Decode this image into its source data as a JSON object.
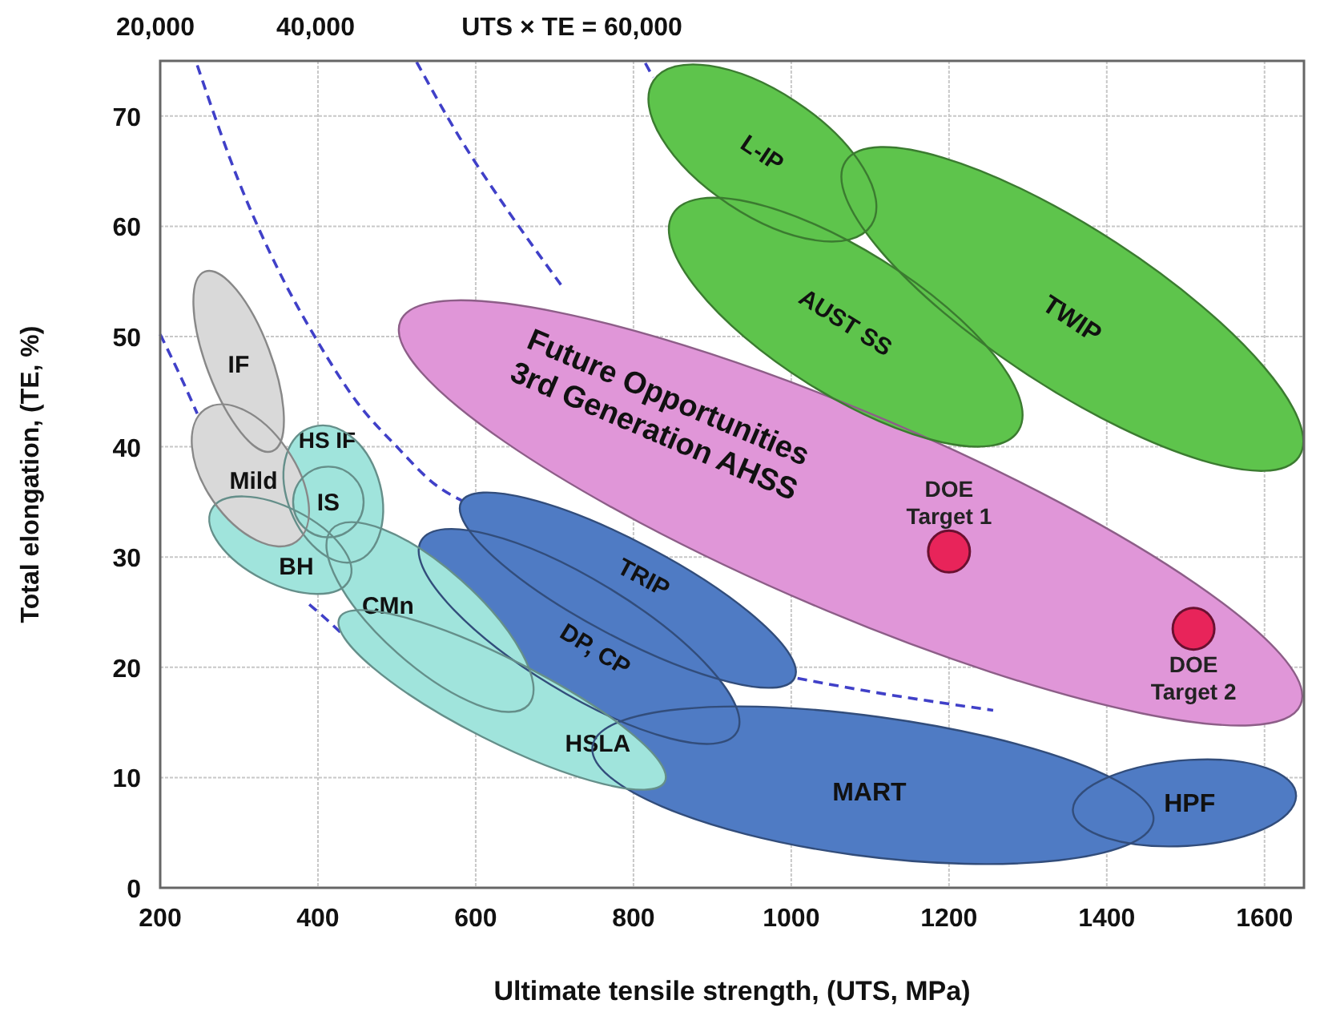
{
  "chart_data": {
    "type": "scatter",
    "xlabel": "Ultimate tensile strength, (UTS, MPa)",
    "ylabel": "Total elongation, (TE, %)",
    "xlim": [
      200,
      1650
    ],
    "ylim": [
      0,
      75
    ],
    "xticks": [
      200,
      400,
      600,
      800,
      1000,
      1200,
      1400,
      1600
    ],
    "yticks": [
      0,
      10,
      20,
      30,
      40,
      50,
      60,
      70
    ],
    "grid": true,
    "annotations": [
      "20,000",
      "40,000",
      "UTS × TE = 60,000"
    ],
    "series": [
      {
        "type": "line",
        "color": "#4040c8",
        "line_style": "dashed",
        "marker": "none",
        "x": [
          200,
          225,
          247,
          300,
          389,
          410,
          434
        ],
        "values": [
          50.2,
          46.5,
          43,
          null,
          25.7,
          24.4,
          22.8
        ]
      },
      {
        "type": "line",
        "color": "#4040c8",
        "line_style": "dashed",
        "marker": "none",
        "x": [
          247,
          300,
          350,
          400,
          450,
          500,
          550,
          586,
          800,
          1008,
          1100,
          1256
        ],
        "values": [
          74.6,
          64,
          56,
          49.5,
          44,
          40,
          36.5,
          35,
          null,
          19,
          17.8,
          16.1
        ]
      },
      {
        "type": "line",
        "color": "#4040c8",
        "line_style": "dashed",
        "marker": "none",
        "x": [
          525,
          580,
          640,
          708
        ],
        "values": [
          74.9,
          68,
          61.5,
          54.7
        ]
      },
      {
        "type": "line",
        "color": "#4040c8",
        "line_style": "dashed",
        "marker": "none",
        "x": [
          815,
          825
        ],
        "values": [
          74.8,
          73.5
        ]
      },
      {
        "type": "area",
        "name": "Future Opportunities\n3rd Generation AHSS",
        "color": "#e096d8",
        "x": [
          504.6,
          1123.9,
          1645.7,
          1026.4
        ],
        "values": [
          51.4,
          42.3,
          16.6,
          25.7
        ]
      },
      {
        "type": "area",
        "name": "TWIP",
        "color": "#5ec44c",
        "x": [
          1069,
          1412.2,
          1643.7,
          1300.5
        ],
        "values": [
          65.9,
          58.5,
          39.1,
          46.5
        ]
      },
      {
        "type": "area",
        "name": "L-IP",
        "color": "#5ec44c",
        "x": [
          825.4,
          1006.1,
          1101.5,
          920.8
        ],
        "values": [
          73.2,
          71.3,
          60.1,
          62.0
        ]
      },
      {
        "type": "area",
        "name": "AUST SS",
        "color": "#5ec44c",
        "x": [
          849.8,
          1115.7,
          1288.3,
          1022.3
        ],
        "values": [
          61.1,
          56.9,
          41.5,
          45.7
        ]
      },
      {
        "type": "area",
        "name": "MART",
        "color": "#4f7bc4",
        "x": [
          748.2,
          1110.9,
          1458.9,
          1078.3
        ],
        "values": [
          12.9,
          15.5,
          6.0,
          3.0
        ]
      },
      {
        "type": "area",
        "name": "HPF",
        "color": "#4f7bc4",
        "x": [
          1357,
          1505,
          1640,
          1502
        ],
        "values": [
          7.1,
          11.6,
          8.3,
          3.8
        ]
      },
      {
        "type": "area",
        "name": "TRIP",
        "color": "#4f7bc4",
        "x": [
          581.7,
          821.3,
          1004,
          764.5
        ],
        "values": [
          35.0,
          30.8,
          19.0,
          23.2
        ]
      },
      {
        "type": "area",
        "name": "DP, CP",
        "color": "#4f7bc4",
        "x": [
          531,
          768.5,
          931,
          695.4
        ],
        "values": [
          31.5,
          27.2,
          14.1,
          18.4
        ]
      },
      {
        "type": "area",
        "name": "HSLA",
        "color": "#a0e4dc",
        "x": [
          427.4,
          656.9,
          839.6,
          608.1
        ],
        "values": [
          24.5,
          20.3,
          9.6,
          13.7
        ]
      },
      {
        "type": "area",
        "name": "CMn",
        "color": "#a0e4dc",
        "x": [
          417.3,
          581.7,
          667,
          500.5
        ],
        "values": [
          32.5,
          27.9,
          16.6,
          21.3
        ]
      },
      {
        "type": "area",
        "name": "HS IF",
        "color": "#a0e4dc",
        "x": [
          392.9,
          476.1,
          447.7,
          362.4
        ],
        "values": [
          41.8,
          37.2,
          29.6,
          34.8
        ]
      },
      {
        "type": "area",
        "name": "BH",
        "color": "#a0e4dc",
        "x": [
          265,
          374.6,
          439.6,
          330
        ],
        "values": [
          34.3,
          34.1,
          27.9,
          28.0
        ]
      },
      {
        "type": "area",
        "name": "Mild",
        "color": "#d9d9d9",
        "x": [
          256.9,
          360.4,
          372.6,
          267
        ],
        "values": [
          43.4,
          39.8,
          31.4,
          35.1
        ]
      },
      {
        "type": "area",
        "name": "IS",
        "color": "#a0e4dc",
        "x": [
          413.2,
          457.9,
          413.2,
          368.5
        ],
        "values": [
          38.2,
          35.0,
          31.8,
          35.0
        ]
      },
      {
        "type": "area",
        "name": "IF",
        "color": "#d9d9d9",
        "x": [
          256.9,
          338,
          342,
          261
        ],
        "values": [
          55.9,
          48.8,
          39.6,
          46.8
        ]
      },
      {
        "type": "scatter",
        "name": "DOE\nTarget 1",
        "color": "#e8245a",
        "marker": "circle",
        "x": [
          1200
        ],
        "values": [
          30.5
        ]
      },
      {
        "type": "scatter",
        "name": "DOE\nTarget 2",
        "color": "#e8245a",
        "marker": "circle",
        "x": [
          1510
        ],
        "values": [
          23.5
        ]
      }
    ]
  }
}
